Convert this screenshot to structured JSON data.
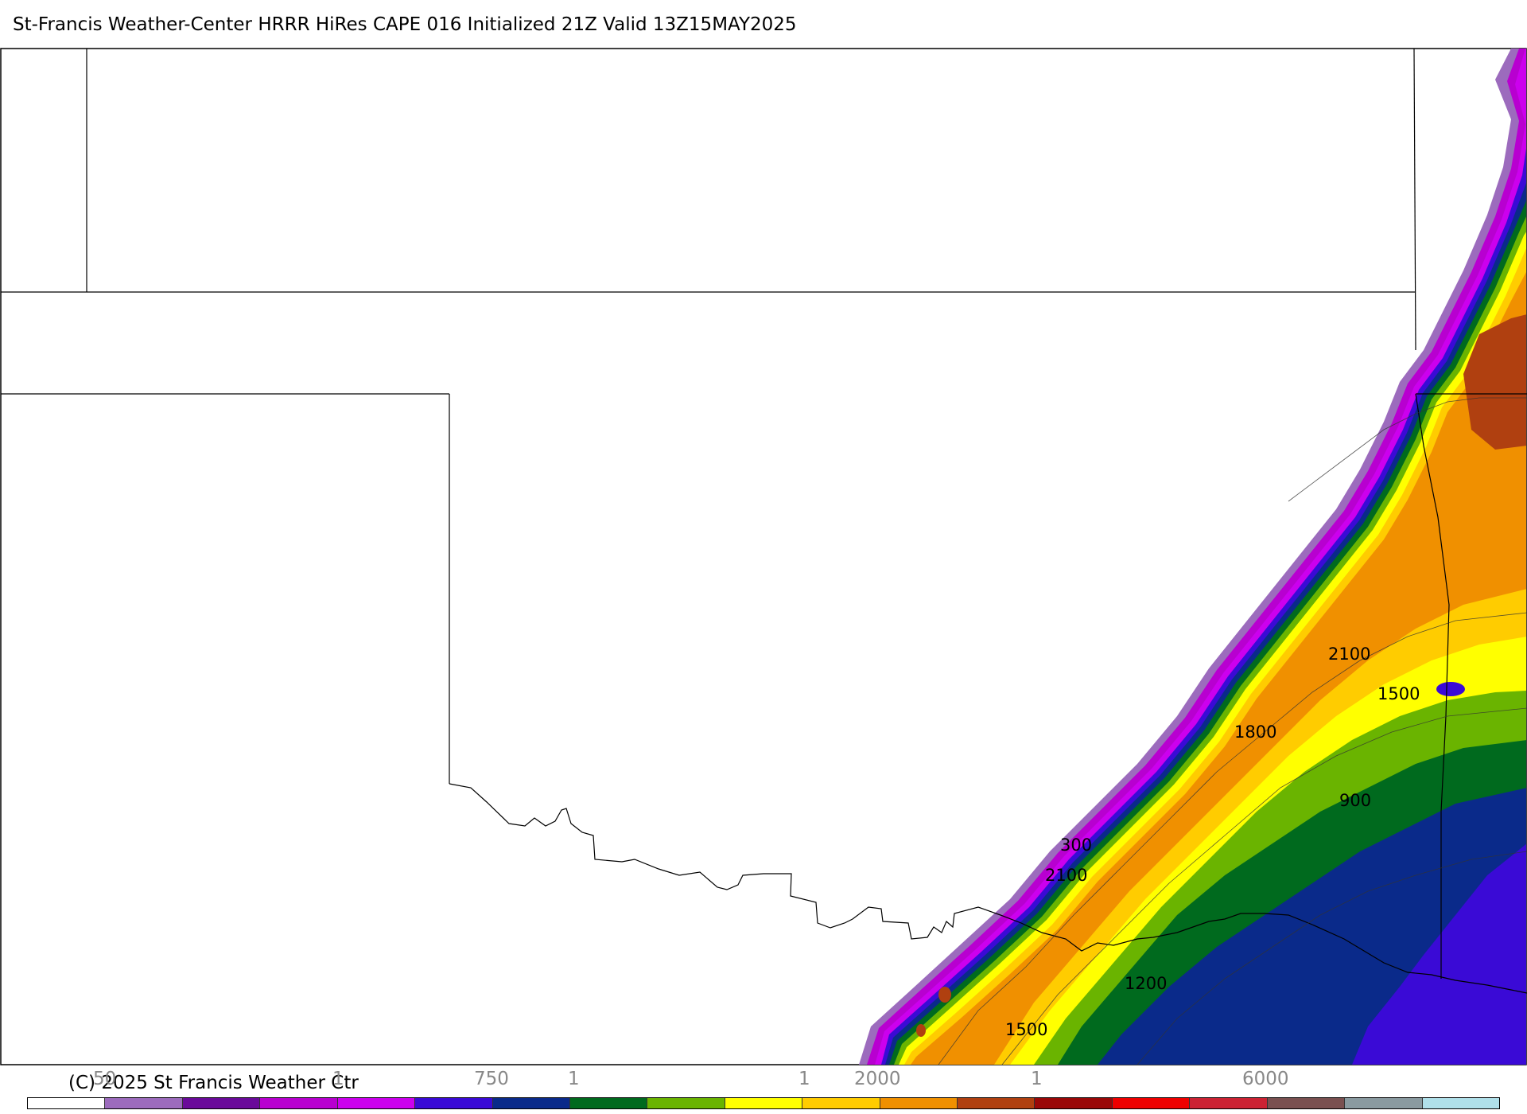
{
  "title": "St-Francis Weather-Center HRRR HiRes CAPE  016 Initialized  21Z Valid 13Z15MAY2025",
  "copyright": "(C) 2025 St Francis Weather Ctr",
  "map": {
    "field": "CAPE",
    "contour_labels": [
      "300",
      "2100",
      "1500",
      "1800",
      "2100",
      "900",
      "1200",
      "1500"
    ],
    "boundaries": [
      "state-borders"
    ]
  },
  "legend": {
    "colors": [
      "#ffffff",
      "#9c6bbd",
      "#6a0a9a",
      "#b800d0",
      "#cc00ee",
      "#3a0ad6",
      "#0a2a8a",
      "#006a1e",
      "#6ab400",
      "#ffff00",
      "#ffcc00",
      "#f09000",
      "#b04010",
      "#9a0808",
      "#ee0000",
      "#cc2233",
      "#7a5050",
      "#8a9aa0",
      "#b0e0ea"
    ],
    "tick_labels": [
      "50",
      "1",
      "750",
      "1",
      "1",
      "2000",
      "1",
      "6000"
    ]
  }
}
